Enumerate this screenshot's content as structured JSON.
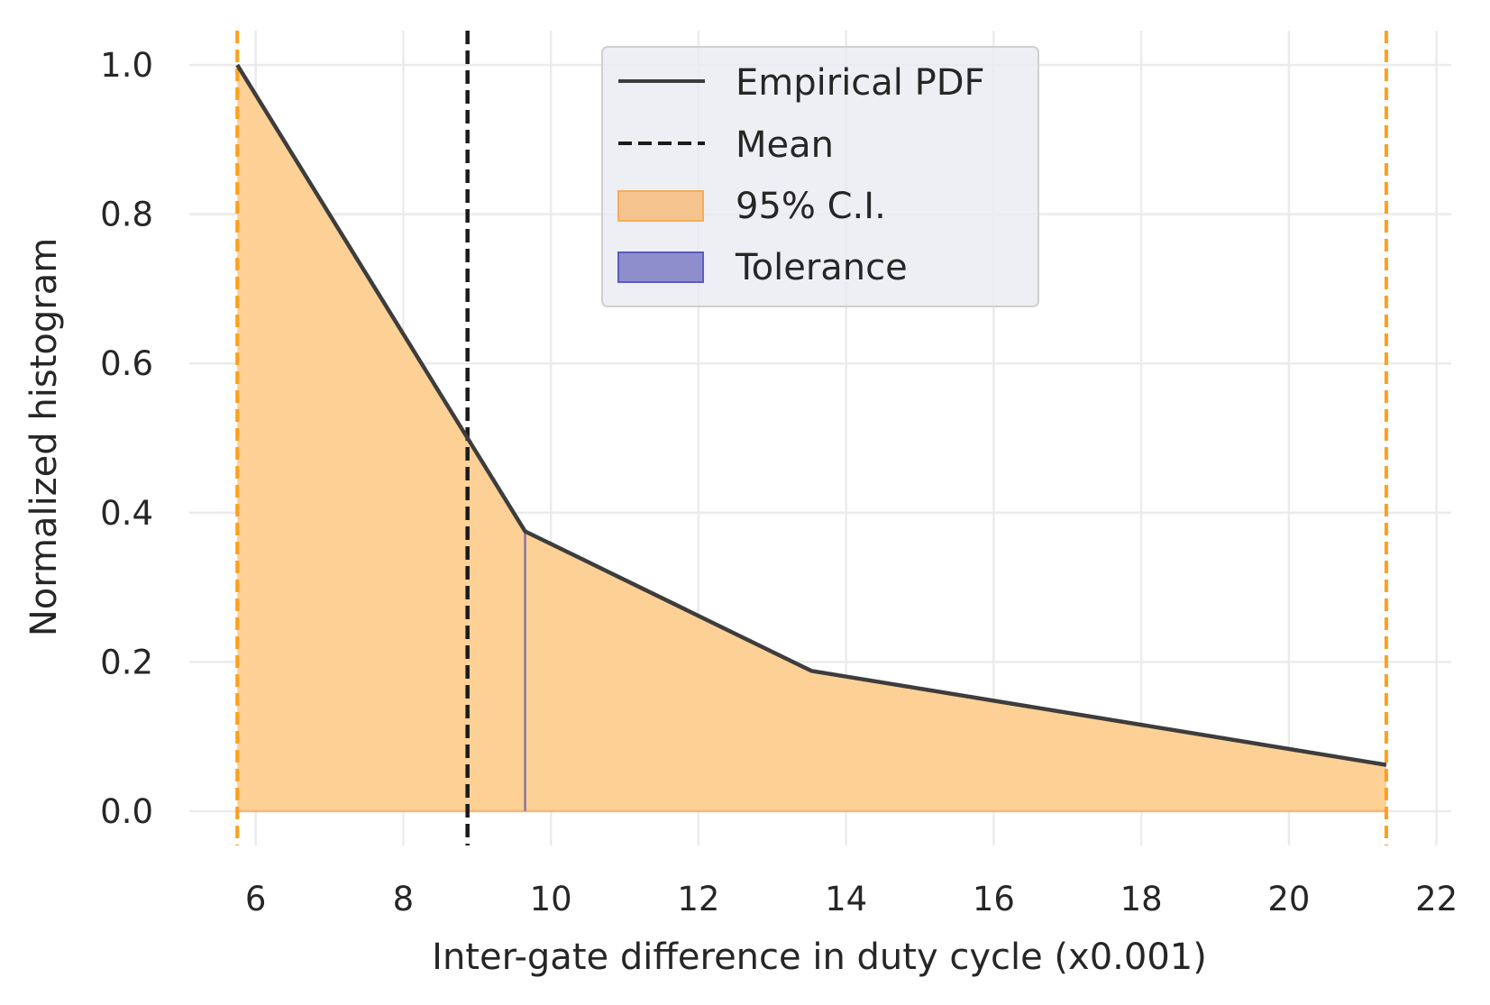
{
  "chart_data": {
    "type": "area",
    "xlabel": "Inter-gate difference in duty cycle  (x0.001)",
    "ylabel": "Normalized histogram",
    "xlim": [
      5.1,
      22.2
    ],
    "ylim": [
      -0.046,
      1.046
    ],
    "x_ticks": [
      6,
      8,
      10,
      12,
      14,
      16,
      18,
      20,
      22
    ],
    "x_tick_labels": [
      "6",
      "8",
      "10",
      "12",
      "14",
      "16",
      "18",
      "20",
      "22"
    ],
    "y_ticks": [
      0.0,
      0.2,
      0.4,
      0.6,
      0.8,
      1.0
    ],
    "y_tick_labels": [
      "0.0",
      "0.2",
      "0.4",
      "0.6",
      "0.8",
      "1.0"
    ],
    "grid": true,
    "legend_position": "top-center",
    "series": [
      {
        "name": "Empirical PDF",
        "style": "line",
        "color": "#3d3d3d",
        "x": [
          5.75,
          8.87,
          9.65,
          13.53,
          21.32
        ],
        "y": [
          1.0,
          0.5,
          0.375,
          0.188,
          0.062
        ]
      }
    ],
    "mean": {
      "name": "Mean",
      "x": 8.87,
      "color": "#1a1a1a"
    },
    "confidence_interval": {
      "name": "95% C.I.",
      "x_low": 5.75,
      "x_high": 21.32,
      "color": "#ff9f1c",
      "fill": "#fdd096"
    },
    "tolerance": {
      "name": "Tolerance",
      "x": 9.65,
      "color": "#3f3fb0"
    }
  }
}
